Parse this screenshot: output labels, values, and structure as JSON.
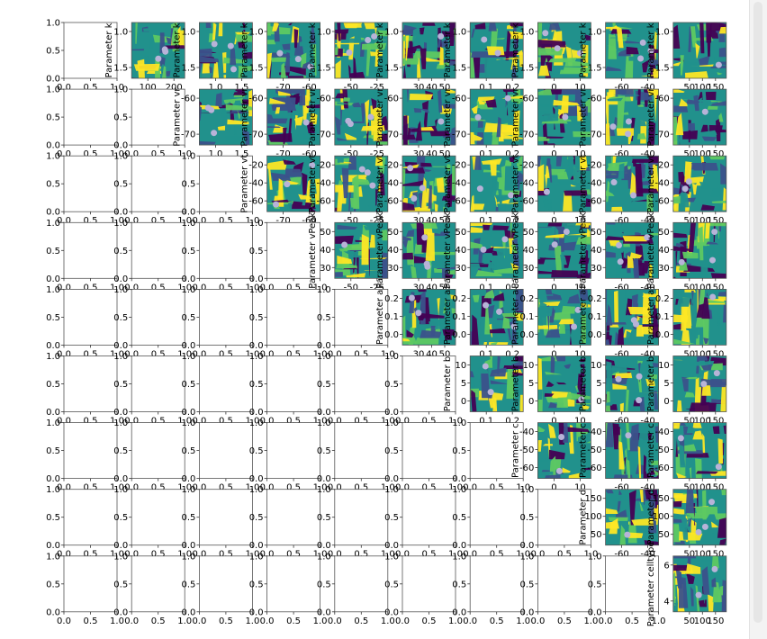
{
  "chart_data": {
    "type": "heatmap",
    "layout": "pairwise-corner-plot",
    "colormap": [
      "#440154",
      "#3b528b",
      "#21918c",
      "#5ec962",
      "#fde725"
    ],
    "marker_color": "#b8b3d8",
    "parameters": [
      {
        "label": "Parameter k",
        "range": [
          0.7,
          2.0
        ],
        "ticks": [
          "1.0",
          "1.5"
        ],
        "xticks": [
          "100",
          "200"
        ]
      },
      {
        "label": "Parameter vr",
        "range": [
          -80,
          -55
        ],
        "ticks": [
          "-60",
          "-70"
        ],
        "xticks": [
          "1.0",
          "1.5"
        ]
      },
      {
        "label": "Parameter vt",
        "range": [
          -65,
          -15
        ],
        "ticks": [
          "-20",
          "-40",
          "-60"
        ],
        "xticks": [
          "-70",
          "-60"
        ]
      },
      {
        "label": "Parameter vPeak",
        "range": [
          24,
          52
        ],
        "ticks": [
          "50",
          "40",
          "30"
        ],
        "xticks": [
          "-50",
          "-25"
        ]
      },
      {
        "label": "Parameter a",
        "range": [
          0,
          0.2
        ],
        "ticks": [
          "0.2",
          "0.1",
          "0.0"
        ],
        "xticks": [
          "30",
          "40",
          "50"
        ]
      },
      {
        "label": "Parameter b",
        "range": [
          -3,
          15
        ],
        "ticks": [
          "10",
          "5",
          "0"
        ],
        "xticks": [
          "0.1",
          "0.2"
        ]
      },
      {
        "label": "Parameter c",
        "range": [
          -62,
          -38
        ],
        "ticks": [
          "-40",
          "-50",
          "-60"
        ],
        "xticks": [
          "0",
          "10"
        ]
      },
      {
        "label": "Parameter d",
        "range": [
          10,
          155
        ],
        "ticks": [
          "150",
          "100",
          "50"
        ],
        "xticks": [
          "-60",
          "-40"
        ]
      },
      {
        "label": "Parameter celltype",
        "range": [
          3,
          7.5
        ],
        "ticks": [
          "6",
          "4"
        ],
        "xticks": [
          "50",
          "100",
          "150"
        ]
      },
      {
        "label": "",
        "range": [
          50,
          200
        ],
        "ticks": [],
        "xticks": [
          "100",
          "200"
        ]
      }
    ],
    "empty_axis": {
      "yticks": [
        "1.0",
        "0.5",
        "0.0"
      ],
      "xticks": [
        "0.0",
        "0.5",
        "1.0"
      ]
    },
    "grid": false,
    "legend": "none"
  }
}
